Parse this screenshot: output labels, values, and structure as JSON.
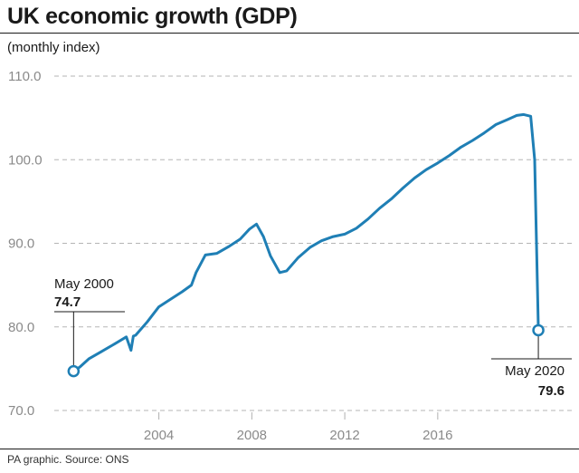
{
  "header": {
    "title": "UK economic growth (GDP)",
    "subtitle": "(monthly index)"
  },
  "footer": {
    "source": "PA graphic. Source: ONS"
  },
  "colors": {
    "line": "#1f7fb5",
    "grid": "#b5b5b5",
    "text": "#1a1a1a",
    "tick": "#8a8a8a"
  },
  "chart_data": {
    "type": "line",
    "title": "UK economic growth (GDP)",
    "subtitle": "(monthly index)",
    "ylim": [
      70,
      110
    ],
    "yticks": [
      70,
      80,
      90,
      100,
      110
    ],
    "ytick_labels": [
      "70.0",
      "80.0",
      "90.0",
      "100.0",
      "110.0"
    ],
    "xlim": [
      2000.2,
      2020.6
    ],
    "xticks": [
      2004,
      2008,
      2012,
      2016
    ],
    "xtick_labels": [
      "2004",
      "2008",
      "2012",
      "2016"
    ],
    "grid": "horizontal dashed",
    "series": [
      {
        "x": [
          2000.33,
          2000.6,
          2001.0,
          2001.5,
          2002.0,
          2002.6,
          2002.8,
          2002.9,
          2003.0,
          2003.5,
          2004.0,
          2004.5,
          2005.0,
          2005.4,
          2005.6,
          2006.0,
          2006.5,
          2007.0,
          2007.5,
          2007.9,
          2008.2,
          2008.5,
          2008.8,
          2009.2,
          2009.5,
          2010.0,
          2010.5,
          2011.0,
          2011.5,
          2012.0,
          2012.5,
          2013.0,
          2013.5,
          2014.0,
          2014.5,
          2015.0,
          2015.5,
          2016.0,
          2016.5,
          2017.0,
          2017.5,
          2018.0,
          2018.5,
          2019.0,
          2019.4,
          2019.7,
          2020.0,
          2020.17,
          2020.33
        ],
        "y": [
          74.7,
          75.2,
          76.2,
          77.0,
          77.8,
          78.8,
          77.2,
          78.9,
          79.0,
          80.6,
          82.4,
          83.3,
          84.2,
          85.0,
          86.5,
          88.6,
          88.8,
          89.6,
          90.5,
          91.7,
          92.3,
          90.8,
          88.5,
          86.5,
          86.7,
          88.3,
          89.5,
          90.3,
          90.8,
          91.1,
          91.8,
          92.9,
          94.2,
          95.3,
          96.6,
          97.8,
          98.8,
          99.6,
          100.5,
          101.5,
          102.3,
          103.2,
          104.2,
          104.8,
          105.3,
          105.4,
          105.2,
          100.0,
          79.6
        ]
      }
    ],
    "annotations": [
      {
        "label": "May 2000",
        "value": "74.7",
        "x": 2000.33,
        "y": 74.7
      },
      {
        "label": "May 2020",
        "value": "79.6",
        "x": 2020.33,
        "y": 79.6
      }
    ]
  }
}
